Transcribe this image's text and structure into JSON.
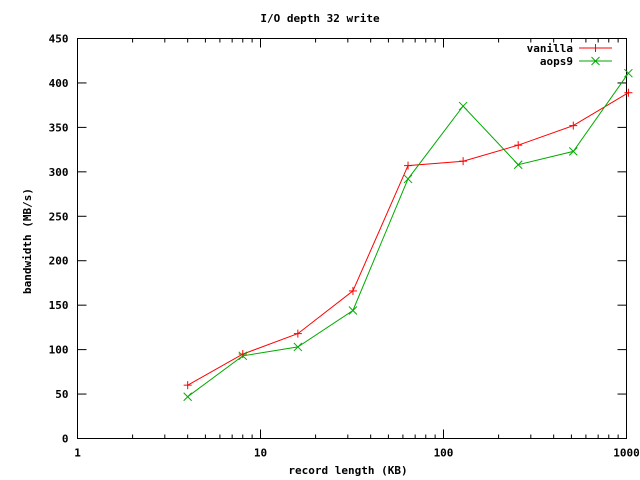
{
  "chart_data": {
    "type": "line",
    "title": "I/O depth 32 write",
    "xlabel": "record length (KB)",
    "ylabel": "bandwidth (MB/s)",
    "x_scale": "log",
    "xlim": [
      1,
      1000
    ],
    "ylim": [
      0,
      450
    ],
    "x_ticks": [
      1,
      10,
      100,
      1000
    ],
    "x_tick_labels": [
      "1",
      "10",
      "100",
      "1000"
    ],
    "y_ticks": [
      0,
      50,
      100,
      150,
      200,
      250,
      300,
      350,
      400,
      450
    ],
    "y_tick_labels": [
      "0",
      "50",
      "100",
      "150",
      "200",
      "250",
      "300",
      "350",
      "400",
      "450"
    ],
    "grid": false,
    "legend_position": "top-right",
    "x": [
      4,
      8,
      16,
      32,
      64,
      128,
      256,
      512,
      1024
    ],
    "series": [
      {
        "name": "vanilla",
        "color": "#ff0000",
        "marker": "plus",
        "values": [
          60,
          95,
          118,
          166,
          307,
          312,
          330,
          352,
          389
        ]
      },
      {
        "name": "aops9",
        "color": "#00aa00",
        "marker": "cross",
        "values": [
          47,
          93,
          103,
          144,
          292,
          374,
          308,
          323,
          411
        ]
      }
    ]
  }
}
